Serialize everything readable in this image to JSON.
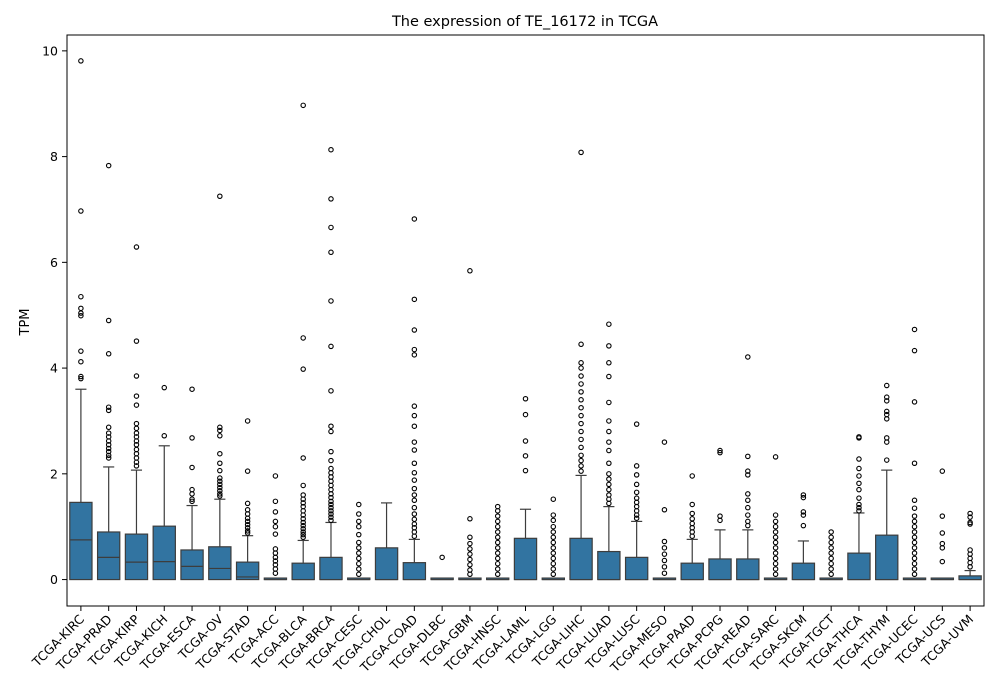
{
  "chart_data": {
    "type": "box",
    "title": "The expression of TE_16172 in TCGA",
    "xlabel": "",
    "ylabel": "TPM",
    "ylim": [
      -0.5,
      10.3
    ],
    "yticks": [
      0,
      2,
      4,
      6,
      8,
      10
    ],
    "grid": false,
    "box_color": "#3274a1",
    "categories": [
      "TCGA-KIRC",
      "TCGA-PRAD",
      "TCGA-KIRP",
      "TCGA-KICH",
      "TCGA-ESCA",
      "TCGA-OV",
      "TCGA-STAD",
      "TCGA-ACC",
      "TCGA-BLCA",
      "TCGA-BRCA",
      "TCGA-CESC",
      "TCGA-CHOL",
      "TCGA-COAD",
      "TCGA-DLBC",
      "TCGA-GBM",
      "TCGA-HNSC",
      "TCGA-LAML",
      "TCGA-LGG",
      "TCGA-LIHC",
      "TCGA-LUAD",
      "TCGA-LUSC",
      "TCGA-MESO",
      "TCGA-PAAD",
      "TCGA-PCPG",
      "TCGA-READ",
      "TCGA-SARC",
      "TCGA-SKCM",
      "TCGA-TGCT",
      "TCGA-THCA",
      "TCGA-THYM",
      "TCGA-UCEC",
      "TCGA-UCS",
      "TCGA-UVM"
    ],
    "boxes": [
      {
        "q1": 0,
        "median": 0.75,
        "q3": 1.46,
        "whisker_low": 0,
        "whisker_high": 3.6,
        "outliers": [
          3.8,
          3.84,
          4.12,
          4.32,
          4.99,
          5.04,
          5.13,
          5.35,
          6.97,
          9.81
        ]
      },
      {
        "q1": 0,
        "median": 0.42,
        "q3": 0.9,
        "whisker_low": 0,
        "whisker_high": 2.13,
        "outliers": [
          2.3,
          2.35,
          2.42,
          2.48,
          2.55,
          2.62,
          2.7,
          2.77,
          2.88,
          3.2,
          3.26,
          4.27,
          4.9,
          7.83
        ]
      },
      {
        "q1": 0,
        "median": 0.33,
        "q3": 0.86,
        "whisker_low": 0,
        "whisker_high": 2.07,
        "outliers": [
          2.15,
          2.22,
          2.3,
          2.38,
          2.46,
          2.55,
          2.62,
          2.7,
          2.77,
          2.86,
          2.95,
          3.3,
          3.47,
          3.85,
          4.51,
          6.29
        ]
      },
      {
        "q1": 0,
        "median": 0.34,
        "q3": 1.01,
        "whisker_low": 0,
        "whisker_high": 2.53,
        "outliers": [
          2.72,
          3.63
        ]
      },
      {
        "q1": 0,
        "median": 0.25,
        "q3": 0.56,
        "whisker_low": 0,
        "whisker_high": 1.4,
        "outliers": [
          1.48,
          1.52,
          1.62,
          1.7,
          2.12,
          2.68,
          3.6
        ]
      },
      {
        "q1": 0,
        "median": 0.21,
        "q3": 0.62,
        "whisker_low": 0,
        "whisker_high": 1.52,
        "outliers": [
          1.58,
          1.62,
          1.68,
          1.74,
          1.8,
          1.86,
          1.92,
          2.06,
          2.2,
          2.38,
          2.72,
          2.82,
          2.88,
          7.25
        ]
      },
      {
        "q1": 0,
        "median": 0.05,
        "q3": 0.33,
        "whisker_low": 0,
        "whisker_high": 0.83,
        "outliers": [
          0.88,
          0.92,
          0.98,
          1.04,
          1.1,
          1.16,
          1.24,
          1.32,
          1.44,
          2.05,
          3.0
        ]
      },
      {
        "q1": 0,
        "median": 0,
        "q3": 0,
        "whisker_low": 0,
        "whisker_high": 0,
        "outliers": [
          0.12,
          0.2,
          0.28,
          0.35,
          0.42,
          0.5,
          0.58,
          0.86,
          1.0,
          1.1,
          1.28,
          1.48,
          1.96
        ]
      },
      {
        "q1": 0,
        "median": 0,
        "q3": 0.31,
        "whisker_low": 0,
        "whisker_high": 0.74,
        "outliers": [
          0.8,
          0.85,
          0.9,
          0.96,
          1.02,
          1.08,
          1.15,
          1.22,
          1.3,
          1.38,
          1.45,
          1.52,
          1.6,
          1.78,
          2.3,
          3.98,
          4.57,
          8.97
        ]
      },
      {
        "q1": 0,
        "median": 0,
        "q3": 0.42,
        "whisker_low": 0,
        "whisker_high": 1.08,
        "outliers": [
          1.12,
          1.18,
          1.24,
          1.3,
          1.36,
          1.42,
          1.48,
          1.55,
          1.62,
          1.7,
          1.78,
          1.86,
          1.94,
          2.02,
          2.1,
          2.25,
          2.42,
          2.8,
          2.9,
          3.57,
          4.41,
          5.27,
          6.19,
          6.66,
          7.2,
          8.13
        ]
      },
      {
        "q1": 0,
        "median": 0,
        "q3": 0,
        "whisker_low": 0,
        "whisker_high": 0,
        "outliers": [
          0.1,
          0.2,
          0.3,
          0.4,
          0.5,
          0.6,
          0.7,
          0.85,
          1.0,
          1.1,
          1.24,
          1.42
        ]
      },
      {
        "q1": 0,
        "median": 0,
        "q3": 0.6,
        "whisker_low": 0,
        "whisker_high": 1.45,
        "outliers": []
      },
      {
        "q1": 0,
        "median": 0,
        "q3": 0.32,
        "whisker_low": 0,
        "whisker_high": 0.76,
        "outliers": [
          0.82,
          0.9,
          0.98,
          1.05,
          1.14,
          1.24,
          1.36,
          1.5,
          1.6,
          1.72,
          1.88,
          2.02,
          2.2,
          2.45,
          2.6,
          2.9,
          3.1,
          3.28,
          4.25,
          4.35,
          4.72,
          5.3,
          6.82
        ]
      },
      {
        "q1": 0,
        "median": 0,
        "q3": 0,
        "whisker_low": 0,
        "whisker_high": 0,
        "outliers": [
          0.42
        ]
      },
      {
        "q1": 0,
        "median": 0,
        "q3": 0,
        "whisker_low": 0,
        "whisker_high": 0,
        "outliers": [
          0.1,
          0.18,
          0.28,
          0.38,
          0.48,
          0.58,
          0.68,
          0.8,
          1.15,
          5.84
        ]
      },
      {
        "q1": 0,
        "median": 0,
        "q3": 0,
        "whisker_low": 0,
        "whisker_high": 0,
        "outliers": [
          0.1,
          0.2,
          0.3,
          0.4,
          0.5,
          0.6,
          0.7,
          0.8,
          0.9,
          1.0,
          1.1,
          1.2,
          1.3,
          1.38
        ]
      },
      {
        "q1": 0,
        "median": 0,
        "q3": 0.78,
        "whisker_low": 0,
        "whisker_high": 1.33,
        "outliers": [
          2.06,
          2.34,
          2.62,
          3.12,
          3.42
        ]
      },
      {
        "q1": 0,
        "median": 0,
        "q3": 0,
        "whisker_low": 0,
        "whisker_high": 0,
        "outliers": [
          0.1,
          0.2,
          0.3,
          0.4,
          0.5,
          0.6,
          0.7,
          0.8,
          0.9,
          1.0,
          1.12,
          1.22,
          1.52
        ]
      },
      {
        "q1": 0,
        "median": 0,
        "q3": 0.78,
        "whisker_low": 0,
        "whisker_high": 1.97,
        "outliers": [
          2.05,
          2.15,
          2.25,
          2.35,
          2.5,
          2.65,
          2.8,
          2.95,
          3.1,
          3.25,
          3.4,
          3.55,
          3.7,
          3.85,
          4.0,
          4.1,
          4.45,
          8.08
        ]
      },
      {
        "q1": 0,
        "median": 0,
        "q3": 0.53,
        "whisker_low": 0,
        "whisker_high": 1.38,
        "outliers": [
          1.44,
          1.52,
          1.6,
          1.7,
          1.8,
          1.9,
          2.0,
          2.2,
          2.44,
          2.6,
          2.8,
          3.0,
          3.35,
          3.84,
          4.1,
          4.42,
          4.83
        ]
      },
      {
        "q1": 0,
        "median": 0,
        "q3": 0.42,
        "whisker_low": 0,
        "whisker_high": 1.1,
        "outliers": [
          1.16,
          1.22,
          1.3,
          1.38,
          1.46,
          1.54,
          1.65,
          1.8,
          1.98,
          2.15,
          2.94
        ]
      },
      {
        "q1": 0,
        "median": 0,
        "q3": 0,
        "whisker_low": 0,
        "whisker_high": 0,
        "outliers": [
          0.12,
          0.24,
          0.36,
          0.48,
          0.6,
          0.72,
          1.32,
          2.6
        ]
      },
      {
        "q1": 0,
        "median": 0,
        "q3": 0.31,
        "whisker_low": 0,
        "whisker_high": 0.76,
        "outliers": [
          0.82,
          0.9,
          0.98,
          1.06,
          1.15,
          1.25,
          1.42,
          1.96
        ]
      },
      {
        "q1": 0,
        "median": 0,
        "q3": 0.39,
        "whisker_low": 0,
        "whisker_high": 0.94,
        "outliers": [
          1.12,
          1.2,
          2.4,
          2.44
        ]
      },
      {
        "q1": 0,
        "median": 0,
        "q3": 0.39,
        "whisker_low": 0,
        "whisker_high": 0.94,
        "outliers": [
          1.02,
          1.1,
          1.22,
          1.36,
          1.5,
          1.62,
          1.98,
          2.05,
          2.33,
          4.21
        ]
      },
      {
        "q1": 0,
        "median": 0,
        "q3": 0,
        "whisker_low": 0,
        "whisker_high": 0,
        "outliers": [
          0.1,
          0.2,
          0.3,
          0.4,
          0.5,
          0.6,
          0.7,
          0.8,
          0.9,
          1.0,
          1.1,
          1.22,
          2.32
        ]
      },
      {
        "q1": 0,
        "median": 0,
        "q3": 0.31,
        "whisker_low": 0,
        "whisker_high": 0.73,
        "outliers": [
          1.02,
          1.22,
          1.28,
          1.55,
          1.6
        ]
      },
      {
        "q1": 0,
        "median": 0,
        "q3": 0,
        "whisker_low": 0,
        "whisker_high": 0,
        "outliers": [
          0.1,
          0.2,
          0.3,
          0.4,
          0.5,
          0.6,
          0.7,
          0.8,
          0.9
        ]
      },
      {
        "q1": 0,
        "median": 0,
        "q3": 0.5,
        "whisker_low": 0,
        "whisker_high": 1.26,
        "outliers": [
          1.3,
          1.36,
          1.42,
          1.54,
          1.7,
          1.82,
          1.96,
          2.1,
          2.28,
          2.68,
          2.7
        ]
      },
      {
        "q1": 0,
        "median": 0,
        "q3": 0.84,
        "whisker_low": 0,
        "whisker_high": 2.07,
        "outliers": [
          2.26,
          2.6,
          2.68,
          3.04,
          3.12,
          3.18,
          3.38,
          3.45,
          3.67
        ]
      },
      {
        "q1": 0,
        "median": 0,
        "q3": 0,
        "whisker_low": 0,
        "whisker_high": 0,
        "outliers": [
          0.1,
          0.2,
          0.3,
          0.4,
          0.5,
          0.6,
          0.7,
          0.8,
          0.9,
          1.0,
          1.1,
          1.2,
          1.35,
          1.5,
          2.2,
          3.36,
          4.33,
          4.73
        ]
      },
      {
        "q1": 0,
        "median": 0,
        "q3": 0,
        "whisker_low": 0,
        "whisker_high": 0,
        "outliers": [
          0.34,
          0.6,
          0.68,
          0.88,
          1.2,
          2.05
        ]
      },
      {
        "q1": 0,
        "median": 0,
        "q3": 0.07,
        "whisker_low": 0,
        "whisker_high": 0.17,
        "outliers": [
          0.24,
          0.32,
          0.4,
          0.48,
          0.56,
          1.05,
          1.08,
          1.18,
          1.25
        ]
      }
    ]
  }
}
